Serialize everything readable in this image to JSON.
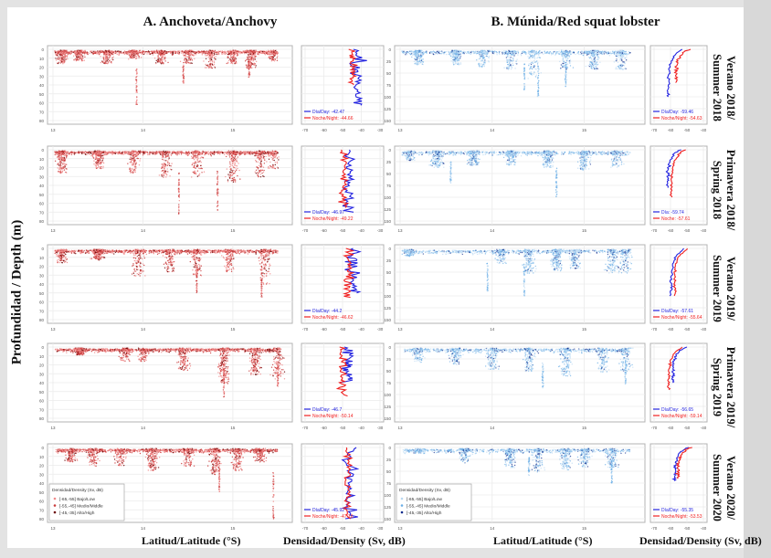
{
  "titles": {
    "colA": "A. Anchoveta/Anchovy",
    "colB": "B. Múnida/Red squat lobster",
    "ylabel": "Profundidad / Depth (m)",
    "xlabel_lat": "Latitud/Latitude (°S)",
    "xlabel_density": "Densidad/Density (Sv, dB)"
  },
  "colors": {
    "anchovy_low": "#f08a8a",
    "anchovy_mid": "#c93a3a",
    "anchovy_high": "#6b0000",
    "lobster_low": "#b9d8f2",
    "lobster_mid": "#6aaee6",
    "lobster_high": "#0a2a8c",
    "day_line": "#2424e0",
    "night_line": "#f02020",
    "grid": "#ebebeb",
    "frame": "#b3b3b3"
  },
  "legend": {
    "title": "Densidad/Density (Sv, dB)",
    "items": [
      "[-65,-55] Bajo/Low",
      "[-55,-45] Medio/Middle",
      "[-45,-35] Alto/High"
    ]
  },
  "chart_data": [
    {
      "type": "scatter",
      "panel": "A-row1",
      "species": "Anchovy",
      "season": "Verano 2018/ Summer 2018",
      "xlim": [
        13,
        15.6
      ],
      "xticks": [
        "13",
        "14",
        "15"
      ],
      "ylim": [
        0,
        80
      ],
      "yticks": [
        "0",
        "10",
        "20",
        "30",
        "40",
        "50",
        "60",
        "70",
        "80"
      ],
      "clusters": [
        [
          13.1,
          15,
          0.6
        ],
        [
          13.3,
          12,
          0.5
        ],
        [
          13.6,
          15,
          0.5
        ],
        [
          13.9,
          10,
          0.6
        ],
        [
          14.2,
          15,
          0.5
        ],
        [
          14.5,
          15,
          0.4
        ],
        [
          14.75,
          20,
          0.5
        ],
        [
          15.0,
          15,
          0.5
        ],
        [
          15.2,
          20,
          0.7
        ],
        [
          15.45,
          12,
          0.4
        ]
      ],
      "deep_features": [
        {
          "lat": 13.93,
          "depth_to": 63
        },
        {
          "lat": 14.45,
          "depth_to": 40
        },
        {
          "lat": 15.18,
          "depth_to": 32
        }
      ]
    },
    {
      "type": "line",
      "panel": "A-row1-profile",
      "xlim": [
        -70,
        -30
      ],
      "xticks": [
        "-70",
        "-60",
        "-50",
        "-40",
        "-30"
      ],
      "ylim": [
        0,
        80
      ],
      "series": [
        {
          "name": "Día/Day",
          "mean": "-42.47"
        },
        {
          "name": "Noche/Night",
          "mean": "-44.66"
        }
      ],
      "profile_shape": "oscillating",
      "depth_max_day": 63,
      "depth_max_night": 40
    },
    {
      "type": "scatter",
      "panel": "B-row1",
      "species": "Red squat lobster",
      "season": "Verano 2018/ Summer 2018",
      "xlim": [
        13,
        15.6
      ],
      "xticks": [
        "13",
        "14",
        "15"
      ],
      "ylim": [
        0,
        150
      ],
      "yticks": [
        "0",
        "25",
        "50",
        "75",
        "100",
        "125",
        "150"
      ],
      "clusters": [
        [
          13.2,
          30,
          0.7
        ],
        [
          13.6,
          30,
          0.7
        ],
        [
          13.9,
          35,
          0.6
        ],
        [
          14.2,
          40,
          0.5
        ],
        [
          14.45,
          60,
          0.5
        ],
        [
          14.8,
          40,
          0.5
        ],
        [
          15.1,
          40,
          0.6
        ],
        [
          15.4,
          40,
          0.5
        ]
      ],
      "deep_features": [
        {
          "lat": 14.35,
          "depth_to": 85
        },
        {
          "lat": 14.5,
          "depth_to": 100
        },
        {
          "lat": 14.8,
          "depth_to": 80
        }
      ]
    },
    {
      "type": "line",
      "panel": "B-row1-profile",
      "xlim": [
        -70,
        -40
      ],
      "xticks": [
        "-70",
        "-60",
        "-50",
        "-40"
      ],
      "ylim": [
        0,
        150
      ],
      "series": [
        {
          "name": "Día/Day",
          "mean": "-59.46"
        },
        {
          "name": "Noche/Night",
          "mean": "-54.63"
        }
      ],
      "profile_shape": "decay",
      "depth_max_day": 100,
      "depth_max_night": 70
    },
    {
      "type": "scatter",
      "panel": "A-row2",
      "species": "Anchovy",
      "season": "Primavera 2018/ Spring 2018",
      "xlim": [
        13,
        15.6
      ],
      "xticks": [
        "13",
        "14",
        "15"
      ],
      "ylim": [
        0,
        80
      ],
      "yticks": [
        "0",
        "10",
        "20",
        "30",
        "40",
        "50",
        "60",
        "70",
        "80"
      ],
      "clusters": [
        [
          13.1,
          25,
          0.8
        ],
        [
          13.5,
          20,
          0.7
        ],
        [
          13.9,
          25,
          0.6
        ],
        [
          14.25,
          30,
          0.5
        ],
        [
          14.6,
          30,
          0.5
        ],
        [
          15.0,
          35,
          0.6
        ],
        [
          15.3,
          30,
          0.5
        ],
        [
          15.45,
          20,
          0.3
        ]
      ],
      "deep_features": [
        {
          "lat": 14.83,
          "depth_to": 68
        },
        {
          "lat": 14.4,
          "depth_to": 72
        }
      ]
    },
    {
      "type": "line",
      "panel": "A-row2-profile",
      "xlim": [
        -70,
        -30
      ],
      "xticks": [
        "-70",
        "-60",
        "-50",
        "-40",
        "-30"
      ],
      "ylim": [
        0,
        80
      ],
      "series": [
        {
          "name": "Día/Day",
          "mean": "-46.97"
        },
        {
          "name": "Noche/Night",
          "mean": "-49.22"
        }
      ],
      "profile_shape": "oscillating",
      "depth_max_day": 70,
      "depth_max_night": 65
    },
    {
      "type": "scatter",
      "panel": "B-row2",
      "species": "Red squat lobster",
      "season": "Primavera 2018/ Spring 2018",
      "xlim": [
        13,
        15.6
      ],
      "xticks": [
        "13",
        "14",
        "15"
      ],
      "ylim": [
        0,
        150
      ],
      "yticks": [
        "0",
        "25",
        "50",
        "75",
        "100",
        "125",
        "150"
      ],
      "clusters": [
        [
          13.1,
          20,
          0.4
        ],
        [
          13.4,
          35,
          0.7
        ],
        [
          13.8,
          30,
          0.8
        ],
        [
          14.2,
          30,
          0.7
        ],
        [
          14.6,
          35,
          0.8
        ],
        [
          15.0,
          40,
          0.7
        ],
        [
          15.35,
          35,
          0.5
        ]
      ],
      "deep_features": [
        {
          "lat": 14.7,
          "depth_to": 100
        },
        {
          "lat": 13.55,
          "depth_to": 70
        }
      ]
    },
    {
      "type": "line",
      "panel": "B-row2-profile",
      "xlim": [
        -70,
        -40
      ],
      "xticks": [
        "-70",
        "-60",
        "-50",
        "-40"
      ],
      "ylim": [
        0,
        150
      ],
      "series": [
        {
          "name": "Día",
          "mean": "-59.74"
        },
        {
          "name": "Noche",
          "mean": "-57.61"
        }
      ],
      "profile_shape": "decay",
      "depth_max_day": 80,
      "depth_max_night": 100
    },
    {
      "type": "scatter",
      "panel": "A-row3",
      "species": "Anchovy",
      "season": "Verano 2019/ Summer 2019",
      "xlim": [
        13,
        15.6
      ],
      "xticks": [
        "13",
        "14",
        "15"
      ],
      "ylim": [
        0,
        80
      ],
      "yticks": [
        "0",
        "10",
        "20",
        "30",
        "40",
        "50",
        "60",
        "70",
        "80"
      ],
      "clusters": [
        [
          13.1,
          15,
          0.5
        ],
        [
          13.5,
          12,
          0.6
        ],
        [
          13.95,
          30,
          0.5
        ],
        [
          14.3,
          25,
          0.5
        ],
        [
          14.6,
          30,
          0.5
        ],
        [
          14.95,
          25,
          0.5
        ],
        [
          15.35,
          40,
          0.5
        ]
      ],
      "deep_features": [
        {
          "lat": 15.32,
          "depth_to": 55
        },
        {
          "lat": 14.6,
          "depth_to": 50
        }
      ]
    },
    {
      "type": "line",
      "panel": "A-row3-profile",
      "xlim": [
        -70,
        -30
      ],
      "xticks": [
        "-70",
        "-60",
        "-50",
        "-40",
        "-30"
      ],
      "ylim": [
        0,
        80
      ],
      "series": [
        {
          "name": "Día/Day",
          "mean": "-44.2"
        },
        {
          "name": "Noche/Night",
          "mean": "-46.62"
        }
      ],
      "profile_shape": "oscillating",
      "depth_max_day": 50,
      "depth_max_night": 55
    },
    {
      "type": "scatter",
      "panel": "B-row3",
      "species": "Red squat lobster",
      "season": "Verano 2019/ Summer 2019",
      "xlim": [
        13,
        15.6
      ],
      "xticks": [
        "13",
        "14",
        "15"
      ],
      "ylim": [
        0,
        150
      ],
      "yticks": [
        "0",
        "25",
        "50",
        "75",
        "100",
        "125",
        "150"
      ],
      "clusters": [
        [
          13.1,
          15,
          0.4
        ],
        [
          14.1,
          30,
          0.5
        ],
        [
          14.4,
          50,
          0.7
        ],
        [
          14.7,
          45,
          0.9
        ],
        [
          14.9,
          40,
          0.7
        ],
        [
          15.3,
          50,
          0.6
        ],
        [
          15.45,
          50,
          0.5
        ]
      ],
      "deep_features": [
        {
          "lat": 14.35,
          "depth_to": 100
        },
        {
          "lat": 13.95,
          "depth_to": 90
        }
      ]
    },
    {
      "type": "line",
      "panel": "B-row3-profile",
      "xlim": [
        -70,
        -40
      ],
      "xticks": [
        "-70",
        "-60",
        "-50",
        "-40"
      ],
      "ylim": [
        0,
        150
      ],
      "series": [
        {
          "name": "Día/Day",
          "mean": "-57.61"
        },
        {
          "name": "Noche/Night",
          "mean": "-55.64"
        }
      ],
      "profile_shape": "decay",
      "depth_max_day": 100,
      "depth_max_night": 100
    },
    {
      "type": "scatter",
      "panel": "A-row4",
      "species": "Anchovy",
      "season": "Primavera 2019/ Spring 2019",
      "xlim": [
        13,
        15.6
      ],
      "xticks": [
        "13",
        "14",
        "15"
      ],
      "ylim": [
        0,
        80
      ],
      "yticks": [
        "0",
        "10",
        "20",
        "30",
        "40",
        "50",
        "60",
        "70",
        "80"
      ],
      "clusters": [
        [
          13.3,
          8,
          0.8
        ],
        [
          13.8,
          15,
          0.4
        ],
        [
          14.0,
          15,
          0.4
        ],
        [
          14.45,
          25,
          0.6
        ],
        [
          14.9,
          40,
          0.9
        ],
        [
          15.25,
          30,
          0.8
        ],
        [
          15.5,
          35,
          0.5
        ]
      ],
      "deep_features": [
        {
          "lat": 14.9,
          "depth_to": 57
        },
        {
          "lat": 15.5,
          "depth_to": 45
        }
      ]
    },
    {
      "type": "line",
      "panel": "A-row4-profile",
      "xlim": [
        -70,
        -30
      ],
      "xticks": [
        "-70",
        "-60",
        "-50",
        "-40",
        "-30"
      ],
      "ylim": [
        0,
        80
      ],
      "series": [
        {
          "name": "Día/Day",
          "mean": "-46.7"
        },
        {
          "name": "Noche/Night",
          "mean": "-50.14"
        }
      ],
      "profile_shape": "oscillating",
      "depth_max_day": 40,
      "depth_max_night": 55
    },
    {
      "type": "scatter",
      "panel": "B-row4",
      "species": "Red squat lobster",
      "season": "Primavera 2019/ Spring 2019",
      "xlim": [
        13,
        15.6
      ],
      "xticks": [
        "13",
        "14",
        "15"
      ],
      "ylim": [
        0,
        150
      ],
      "yticks": [
        "0",
        "25",
        "50",
        "75",
        "100",
        "125",
        "150"
      ],
      "clusters": [
        [
          13.2,
          30,
          0.5
        ],
        [
          13.6,
          35,
          0.6
        ],
        [
          14.0,
          45,
          0.6
        ],
        [
          14.4,
          50,
          0.7
        ],
        [
          14.8,
          60,
          0.7
        ],
        [
          15.2,
          50,
          0.6
        ],
        [
          15.45,
          50,
          0.5
        ]
      ],
      "deep_features": [
        {
          "lat": 14.55,
          "depth_to": 90
        },
        {
          "lat": 15.45,
          "depth_to": 80
        }
      ]
    },
    {
      "type": "line",
      "panel": "B-row4-profile",
      "xlim": [
        -70,
        -40
      ],
      "xticks": [
        "-70",
        "-60",
        "-50",
        "-40"
      ],
      "ylim": [
        0,
        150
      ],
      "series": [
        {
          "name": "Día/Day",
          "mean": "-56.65"
        },
        {
          "name": "Noche/Night",
          "mean": "-59.14"
        }
      ],
      "profile_shape": "decay",
      "depth_max_day": 75,
      "depth_max_night": 90
    },
    {
      "type": "scatter",
      "panel": "A-row5",
      "species": "Anchovy",
      "season": "Verano 2020/ Summer 2020",
      "xlim": [
        13,
        15.6
      ],
      "xticks": [
        "13",
        "14",
        "15"
      ],
      "ylim": [
        0,
        80
      ],
      "yticks": [
        "0",
        "10",
        "20",
        "30",
        "40",
        "50",
        "60",
        "70",
        "80"
      ],
      "clusters": [
        [
          13.2,
          15,
          0.6
        ],
        [
          13.45,
          20,
          0.5
        ],
        [
          13.75,
          20,
          0.4
        ],
        [
          14.1,
          25,
          0.7
        ],
        [
          14.5,
          20,
          0.5
        ],
        [
          14.8,
          30,
          0.7
        ],
        [
          15.05,
          25,
          0.6
        ],
        [
          15.3,
          15,
          0.5
        ]
      ],
      "deep_features": [
        {
          "lat": 15.45,
          "depth_to": 80
        },
        {
          "lat": 14.85,
          "depth_to": 50
        }
      ]
    },
    {
      "type": "line",
      "panel": "A-row5-profile",
      "xlim": [
        -70,
        -30
      ],
      "xticks": [
        "-70",
        "-60",
        "-50",
        "-40",
        "-30"
      ],
      "ylim": [
        0,
        80
      ],
      "series": [
        {
          "name": "Día/Day",
          "mean": "-45.92"
        },
        {
          "name": "Noche/Night",
          "mean": "-47.16"
        }
      ],
      "profile_shape": "oscillating",
      "depth_max_day": 80,
      "depth_max_night": 80
    },
    {
      "type": "scatter",
      "panel": "B-row5",
      "species": "Red squat lobster",
      "season": "Verano 2020/ Summer 2020",
      "xlim": [
        13,
        15.6
      ],
      "xticks": [
        "13",
        "14",
        "15"
      ],
      "ylim": [
        0,
        150
      ],
      "yticks": [
        "0",
        "25",
        "50",
        "75",
        "100",
        "125",
        "150"
      ],
      "clusters": [
        [
          13.2,
          10,
          0.3
        ],
        [
          13.7,
          30,
          0.5
        ],
        [
          14.2,
          40,
          0.7
        ],
        [
          14.5,
          50,
          0.6
        ],
        [
          14.8,
          45,
          0.7
        ],
        [
          15.0,
          40,
          0.6
        ],
        [
          15.3,
          40,
          0.6
        ]
      ],
      "deep_features": [
        {
          "lat": 15.3,
          "depth_to": 75
        },
        {
          "lat": 14.4,
          "depth_to": 60
        }
      ]
    },
    {
      "type": "line",
      "panel": "B-row5-profile",
      "xlim": [
        -70,
        -40
      ],
      "xticks": [
        "-70",
        "-60",
        "-50",
        "-40"
      ],
      "ylim": [
        0,
        150
      ],
      "series": [
        {
          "name": "Día/Day",
          "mean": "-55.35"
        },
        {
          "name": "Noche/Night",
          "mean": "-53.53"
        }
      ],
      "profile_shape": "decay",
      "depth_max_day": 70,
      "depth_max_night": 65
    }
  ],
  "row_labels": [
    "Verano 2018/\nSummer 2018",
    "Primavera 2018/\nSpring 2018",
    "Verano 2019/\nSummer 2019",
    "Primavera 2019/\nSpring 2019",
    "Verano 2020/\nSummer 2020"
  ]
}
